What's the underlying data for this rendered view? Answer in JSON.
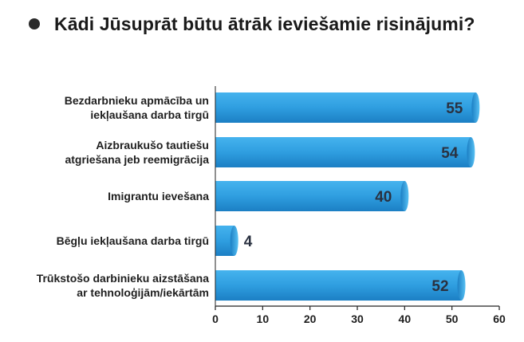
{
  "chart_data": {
    "type": "bar",
    "orientation": "horizontal",
    "title": "Kādi Jūsuprāt būtu ātrāk ieviešamie risinājumi?",
    "categories": [
      [
        "Bezdarbnieku apmācība un",
        "iekļaušana darba tirgū"
      ],
      [
        "Aizbraukušo tautiešu",
        "atgriešana jeb reemigrācija"
      ],
      [
        "Imigrantu ievešana"
      ],
      [
        "Bēgļu iekļaušana darba tirgū"
      ],
      [
        "Trūkstošo darbinieku aizstāšana",
        "ar tehnoloģijām/iekārtām"
      ]
    ],
    "values": [
      55,
      54,
      40,
      4,
      52
    ],
    "xlim": [
      0,
      60
    ],
    "xticks": [
      0,
      10,
      20,
      30,
      40,
      50,
      60
    ],
    "grid": false,
    "legend": "none",
    "bar_color_dark": "#1c7fc4",
    "bar_color_light": "#45b3ee"
  }
}
